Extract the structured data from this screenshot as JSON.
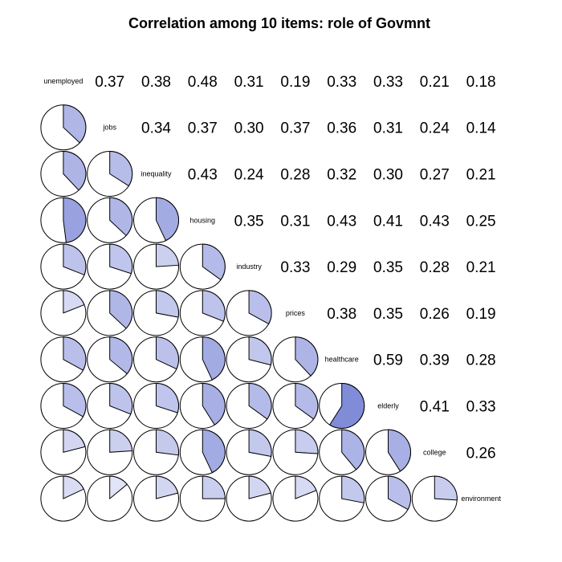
{
  "chart_data": {
    "type": "heatmap",
    "title": "Correlation among 10 items: role of Govmnt",
    "variables": [
      "unemployed",
      "jobs",
      "inequality",
      "housing",
      "industry",
      "prices",
      "healthcare",
      "elderly",
      "college",
      "environment"
    ],
    "matrix": [
      [
        1.0,
        0.37,
        0.38,
        0.48,
        0.31,
        0.19,
        0.33,
        0.33,
        0.21,
        0.18
      ],
      [
        0.37,
        1.0,
        0.34,
        0.37,
        0.3,
        0.37,
        0.36,
        0.31,
        0.24,
        0.14
      ],
      [
        0.38,
        0.34,
        1.0,
        0.43,
        0.24,
        0.28,
        0.32,
        0.3,
        0.27,
        0.21
      ],
      [
        0.48,
        0.37,
        0.43,
        1.0,
        0.35,
        0.31,
        0.43,
        0.41,
        0.43,
        0.25
      ],
      [
        0.31,
        0.3,
        0.24,
        0.35,
        1.0,
        0.33,
        0.29,
        0.35,
        0.28,
        0.21
      ],
      [
        0.19,
        0.37,
        0.28,
        0.31,
        0.33,
        1.0,
        0.38,
        0.35,
        0.26,
        0.19
      ],
      [
        0.33,
        0.36,
        0.32,
        0.43,
        0.29,
        0.38,
        1.0,
        0.59,
        0.39,
        0.28
      ],
      [
        0.33,
        0.31,
        0.3,
        0.41,
        0.35,
        0.35,
        0.59,
        1.0,
        0.41,
        0.33
      ],
      [
        0.21,
        0.24,
        0.27,
        0.43,
        0.28,
        0.26,
        0.39,
        0.41,
        1.0,
        0.26
      ],
      [
        0.18,
        0.14,
        0.21,
        0.25,
        0.21,
        0.19,
        0.28,
        0.33,
        0.26,
        1.0
      ]
    ],
    "lower_panel": "pie",
    "upper_panel": "number",
    "diagonal_panel": "label",
    "number_format": "2 decimals",
    "colors": {
      "low": "#ffffff",
      "high": "#2a3cbe",
      "outline": "#000000"
    }
  }
}
